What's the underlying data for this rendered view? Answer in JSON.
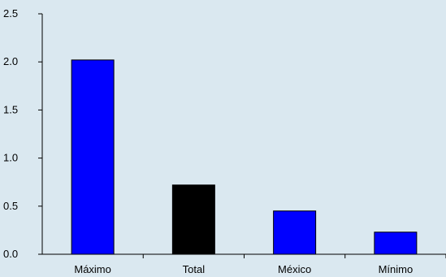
{
  "chart_data": {
    "type": "bar",
    "categories": [
      "Máximo",
      "Total",
      "México",
      "Mínimo"
    ],
    "values": [
      2.02,
      0.72,
      0.45,
      0.23
    ],
    "bar_colors": [
      "#0000ff",
      "#000000",
      "#0000ff",
      "#0000ff"
    ],
    "title": "",
    "xlabel": "",
    "ylabel": "",
    "ylim": [
      0,
      2.5
    ],
    "yticks": [
      "0.0",
      "0.5",
      "1.0",
      "1.5",
      "2.0",
      "2.5"
    ],
    "grid": false,
    "legend": "none",
    "background": "#dae8f0",
    "axis_color": "#000000"
  }
}
